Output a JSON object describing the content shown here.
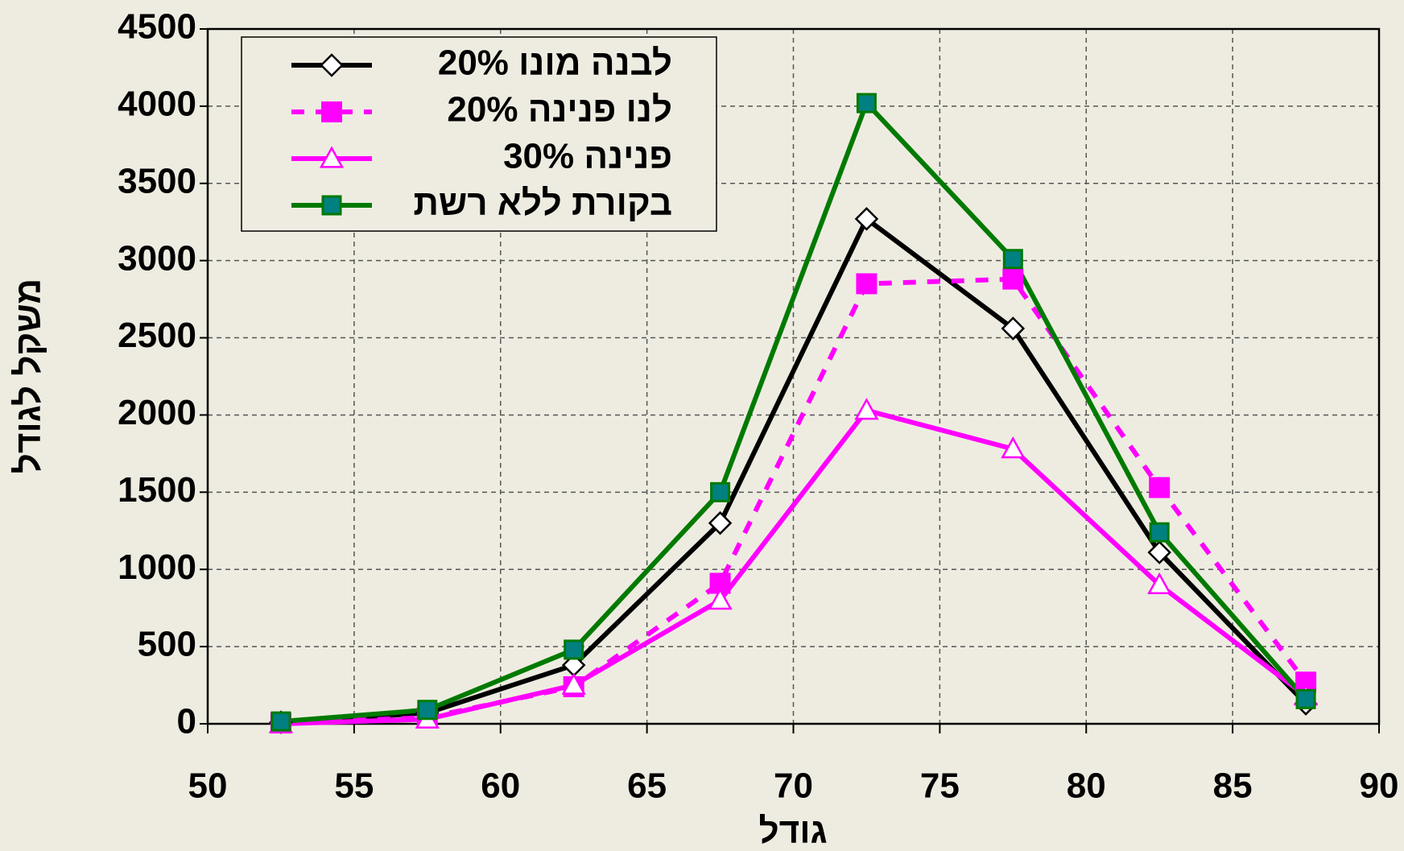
{
  "chart_data": {
    "type": "line",
    "x_label": "גודל",
    "y_label": "משקל לגודל",
    "x": [
      52.5,
      57.5,
      62.5,
      67.5,
      72.5,
      77.5,
      82.5,
      87.5
    ],
    "series": [
      {
        "name": "לבנה מונו 20%",
        "color": "#000000",
        "marker": "diamond",
        "dash": false,
        "values": [
          10,
          70,
          380,
          1300,
          3270,
          2560,
          1110,
          130
        ]
      },
      {
        "name": "לנו פנינה 20%",
        "color": "#ff00ff",
        "marker": "square",
        "dash": true,
        "values": [
          5,
          40,
          240,
          910,
          2850,
          2880,
          1530,
          270
        ]
      },
      {
        "name": "פנינה 30%",
        "color": "#ff00ff",
        "marker": "triangle",
        "dash": false,
        "values": [
          0,
          30,
          250,
          800,
          2030,
          1780,
          900,
          180
        ]
      },
      {
        "name": "בקורת ללא רשת",
        "color": "#007a00",
        "marker": "teal-square",
        "dash": false,
        "values": [
          15,
          90,
          480,
          1500,
          4020,
          3010,
          1240,
          160
        ]
      }
    ],
    "xlim": [
      50,
      90
    ],
    "xticks": [
      50,
      55,
      60,
      65,
      70,
      75,
      80,
      85,
      90
    ],
    "ylim": [
      0,
      4500
    ],
    "yticks": [
      0,
      500,
      1000,
      1500,
      2000,
      2500,
      3000,
      3500,
      4000,
      4500
    ],
    "grid": true,
    "legend": "upper left"
  }
}
